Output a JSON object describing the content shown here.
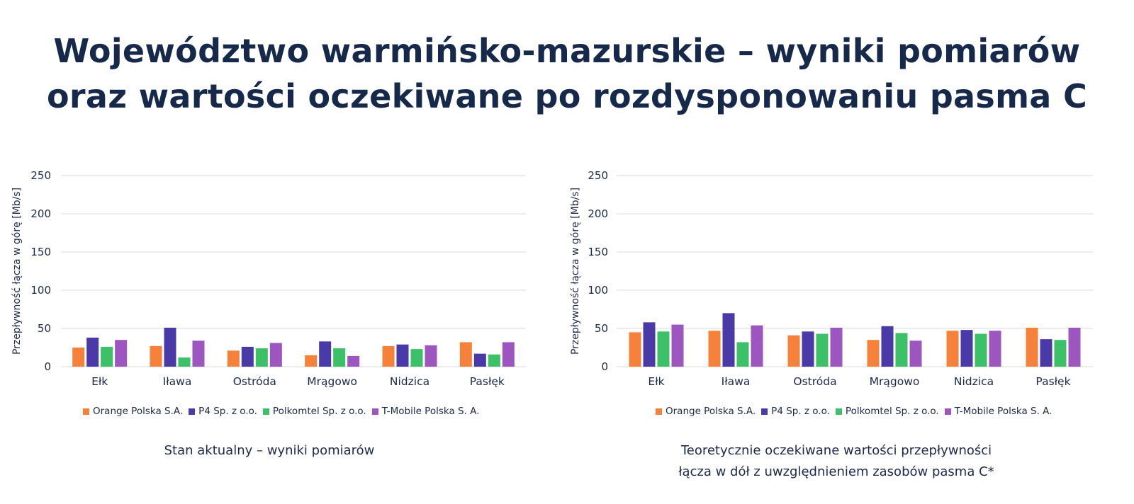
{
  "page": {
    "title_line1": "Województwo warmińsko-mazurskie – wyniki pomiarów",
    "title_line2": "oraz wartości oczekiwane po rozdysponowaniu pasma C"
  },
  "colors": {
    "Orange Polska S.A.": "#f5813a",
    "P4 Sp. z o.o.": "#4a3aa8",
    "Polkomtel Sp. z o.o.": "#3cc068",
    "T-Mobile Polska S. A.": "#9d55c0",
    "grid": "#d9d9d9",
    "axis_text": "#1c2a4a"
  },
  "chart_data": [
    {
      "type": "bar",
      "caption": [
        "Stan aktualny – wyniki pomiarów"
      ],
      "ylabel": "Przepływność łącza w górę [Mb/s]",
      "ylim": [
        0,
        250
      ],
      "yticks": [
        0,
        50,
        100,
        150,
        200,
        250
      ],
      "grid": true,
      "legend_position": "bottom",
      "categories": [
        "Ełk",
        "Iława",
        "Ostróda",
        "Mrągowo",
        "Nidzica",
        "Pasłęk"
      ],
      "series": [
        {
          "name": "Orange Polska S.A.",
          "values": [
            25,
            27,
            21,
            15,
            27,
            32
          ]
        },
        {
          "name": "P4 Sp. z o.o.",
          "values": [
            38,
            51,
            26,
            33,
            29,
            17
          ]
        },
        {
          "name": "Polkomtel Sp. z o.o.",
          "values": [
            26,
            12,
            24,
            24,
            23,
            16
          ]
        },
        {
          "name": "T-Mobile Polska S. A.",
          "values": [
            35,
            34,
            31,
            14,
            28,
            32
          ]
        }
      ]
    },
    {
      "type": "bar",
      "caption": [
        "Teoretycznie oczekiwane wartości przepływności",
        "łącza w dół z uwzględnieniem zasobów pasma C*"
      ],
      "ylabel": "Przepływność  łącza w górę [Mb/s]",
      "ylim": [
        0,
        250
      ],
      "yticks": [
        0,
        50,
        100,
        150,
        200,
        250
      ],
      "grid": true,
      "legend_position": "bottom",
      "categories": [
        "Ełk",
        "Iława",
        "Ostróda",
        "Mrągowo",
        "Nidzica",
        "Pasłęk"
      ],
      "series": [
        {
          "name": "Orange Polska S.A.",
          "values": [
            45,
            47,
            41,
            35,
            47,
            51
          ]
        },
        {
          "name": "P4 Sp. z o.o.",
          "values": [
            58,
            70,
            46,
            53,
            48,
            36
          ]
        },
        {
          "name": "Polkomtel Sp. z o.o.",
          "values": [
            46,
            32,
            43,
            44,
            43,
            35
          ]
        },
        {
          "name": "T-Mobile Polska S. A.",
          "values": [
            55,
            54,
            51,
            34,
            47,
            51
          ]
        }
      ]
    }
  ]
}
